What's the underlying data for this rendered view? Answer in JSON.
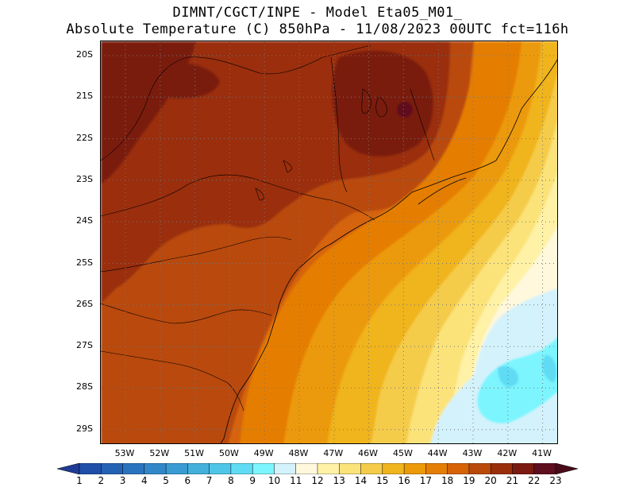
{
  "title": {
    "line1": "DIMNT/CGCT/INPE -  Model Eta05_M01_",
    "line2": "Absolute Temperature (C) 850hPa -  11/08/2023 00UTC fct=116h"
  },
  "map": {
    "lat_labels": [
      "20S",
      "21S",
      "22S",
      "23S",
      "24S",
      "25S",
      "26S",
      "27S",
      "28S",
      "29S"
    ],
    "lon_labels": [
      "53W",
      "52W",
      "51W",
      "50W",
      "49W",
      "48W",
      "47W",
      "46W",
      "45W",
      "44W",
      "43W",
      "42W",
      "41W"
    ],
    "lon_range": [
      -53.7,
      -40.6
    ],
    "lat_range": [
      -19.8,
      -29.4
    ]
  },
  "colorbar": {
    "labels": [
      "1",
      "2",
      "3",
      "4",
      "5",
      "6",
      "7",
      "8",
      "9",
      "10",
      "11",
      "12",
      "13",
      "14",
      "15",
      "16",
      "17",
      "18",
      "19",
      "20",
      "21",
      "22",
      "23"
    ],
    "colors": [
      "#1e3c96",
      "#1f4fa8",
      "#2462b4",
      "#2a74bf",
      "#3187c8",
      "#399bd2",
      "#43b0dc",
      "#4fc6e8",
      "#5fdcf3",
      "#7df5ff",
      "#d4f2fb",
      "#fff8dc",
      "#fff2a6",
      "#fbe37a",
      "#f5cc4a",
      "#f0b41d",
      "#ec9a0a",
      "#e57e05",
      "#d66308",
      "#b94a0a",
      "#9a2f0c",
      "#7a1a10",
      "#5e0e1e",
      "#4a0a1a"
    ]
  }
}
